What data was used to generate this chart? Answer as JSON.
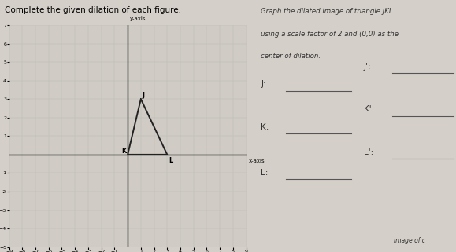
{
  "title": "Complete the given dilation of each figure.",
  "instruction_lines": [
    "Graph the dilated image of triangle JKL",
    "using a scale factor of 2 and (0,0) as the",
    "center of dilation."
  ],
  "axis_xlim": [
    -9,
    9
  ],
  "axis_ylim": [
    -5,
    7
  ],
  "xlabel": "x-axis",
  "ylabel": "y-axis",
  "grid_color": "#bbbbbb",
  "paper_color": "#d4cfc8",
  "grid_bg_color": "#d0cbc4",
  "triangle_J": [
    1,
    3
  ],
  "triangle_K": [
    0,
    0
  ],
  "triangle_L": [
    3,
    0
  ],
  "triangle_color": "#222222",
  "triangle_linewidth": 1.4,
  "label_pairs": [
    [
      "J:",
      "J':"
    ],
    [
      "K:",
      "K':"
    ],
    [
      "L:",
      "L':"
    ]
  ],
  "right_text_color": "#333333",
  "line_color": "#555555",
  "bottom_text": "image of c"
}
